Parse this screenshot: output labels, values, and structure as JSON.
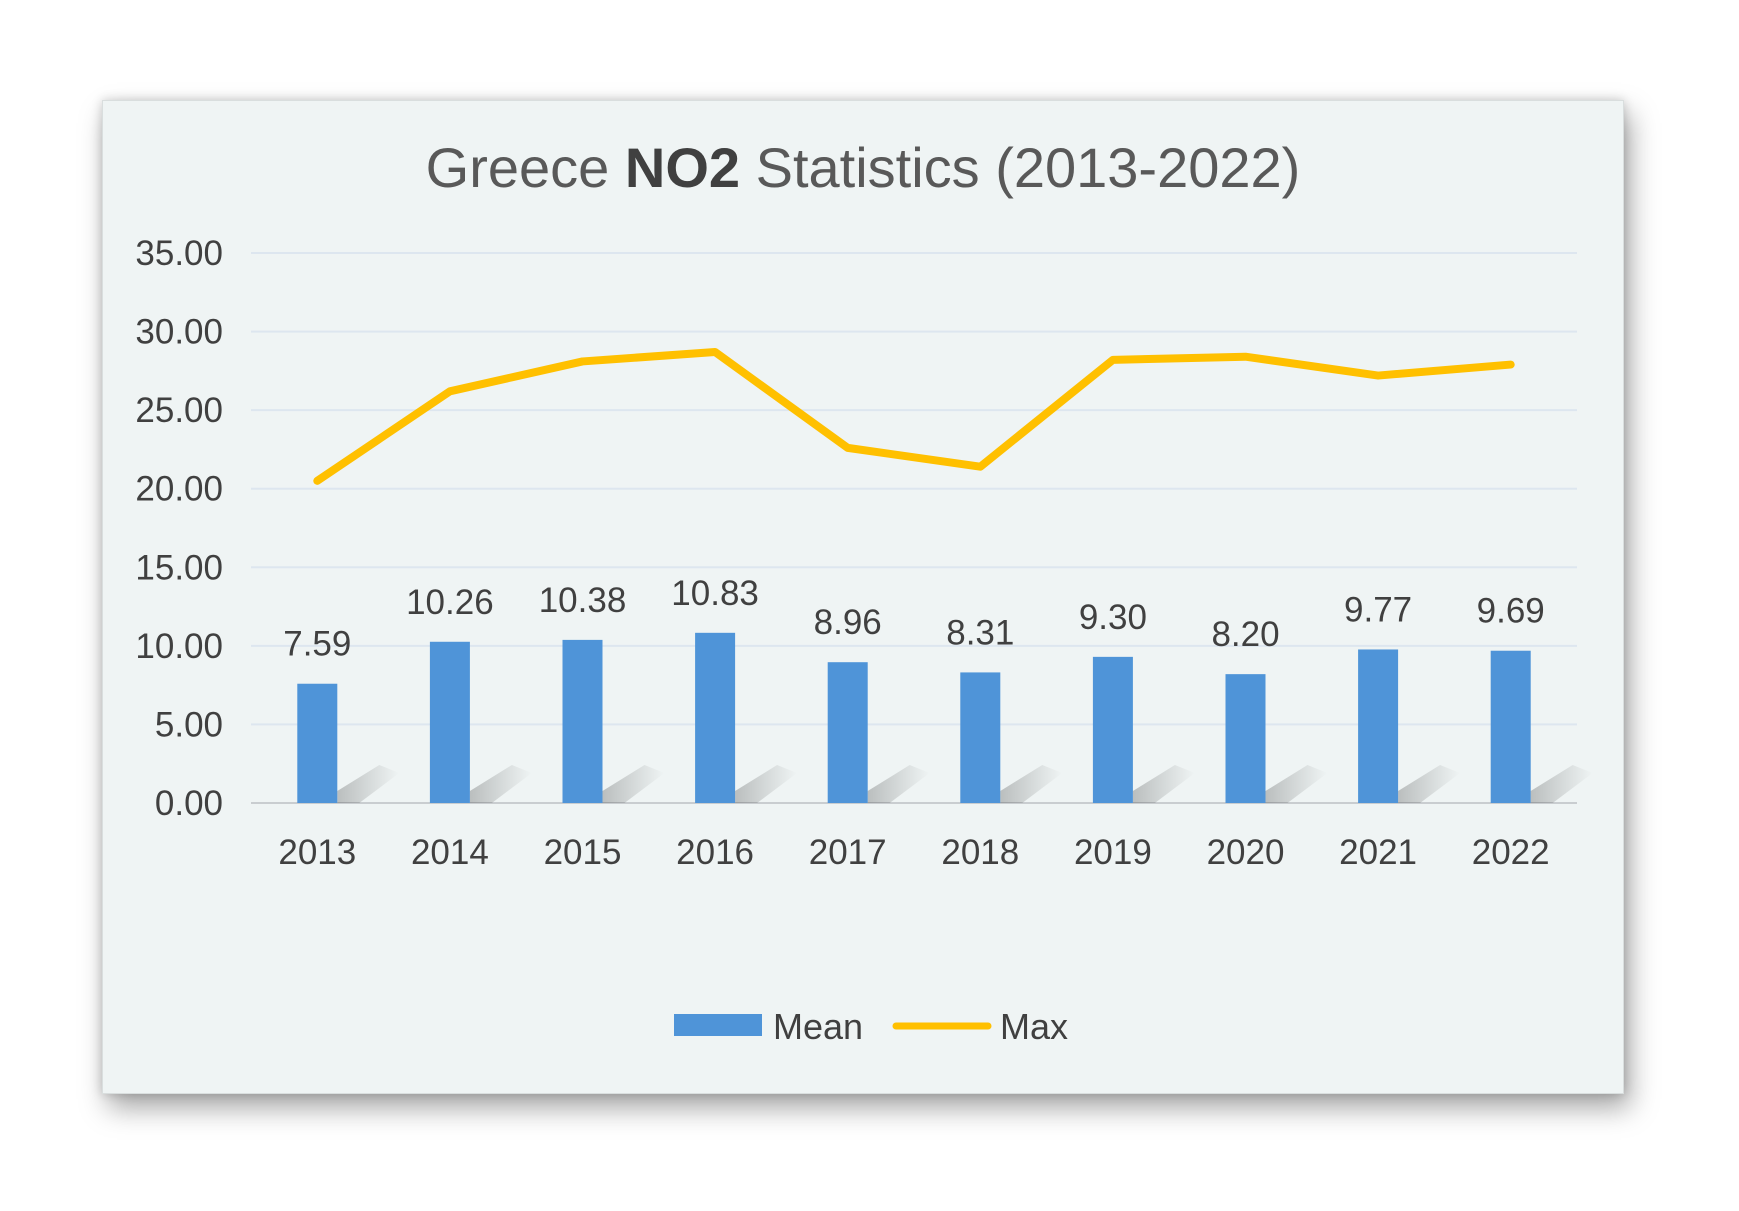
{
  "chart_data": {
    "type": "bar",
    "title_parts": {
      "prefix": "Greece ",
      "bold": "NO2",
      "suffix": " Statistics (2013-2022)"
    },
    "categories": [
      "2013",
      "2014",
      "2015",
      "2016",
      "2017",
      "2018",
      "2019",
      "2020",
      "2021",
      "2022"
    ],
    "y_ticks": [
      "0.00",
      "5.00",
      "10.00",
      "15.00",
      "20.00",
      "25.00",
      "30.00",
      "35.00"
    ],
    "ylim": [
      0,
      35
    ],
    "grid": true,
    "legend_position": "bottom",
    "series": [
      {
        "name": "Mean",
        "kind": "bar",
        "color": "#4f94d8",
        "values": [
          7.59,
          10.26,
          10.38,
          10.83,
          8.96,
          8.31,
          9.3,
          8.2,
          9.77,
          9.69
        ],
        "labels": [
          "7.59",
          "10.26",
          "10.38",
          "10.83",
          "8.96",
          "8.31",
          "9.30",
          "8.20",
          "9.77",
          "9.69"
        ]
      },
      {
        "name": "Max",
        "kind": "line",
        "color": "#ffc000",
        "values": [
          20.5,
          26.2,
          28.1,
          28.7,
          22.6,
          21.4,
          28.2,
          28.4,
          27.2,
          27.9
        ]
      }
    ]
  }
}
